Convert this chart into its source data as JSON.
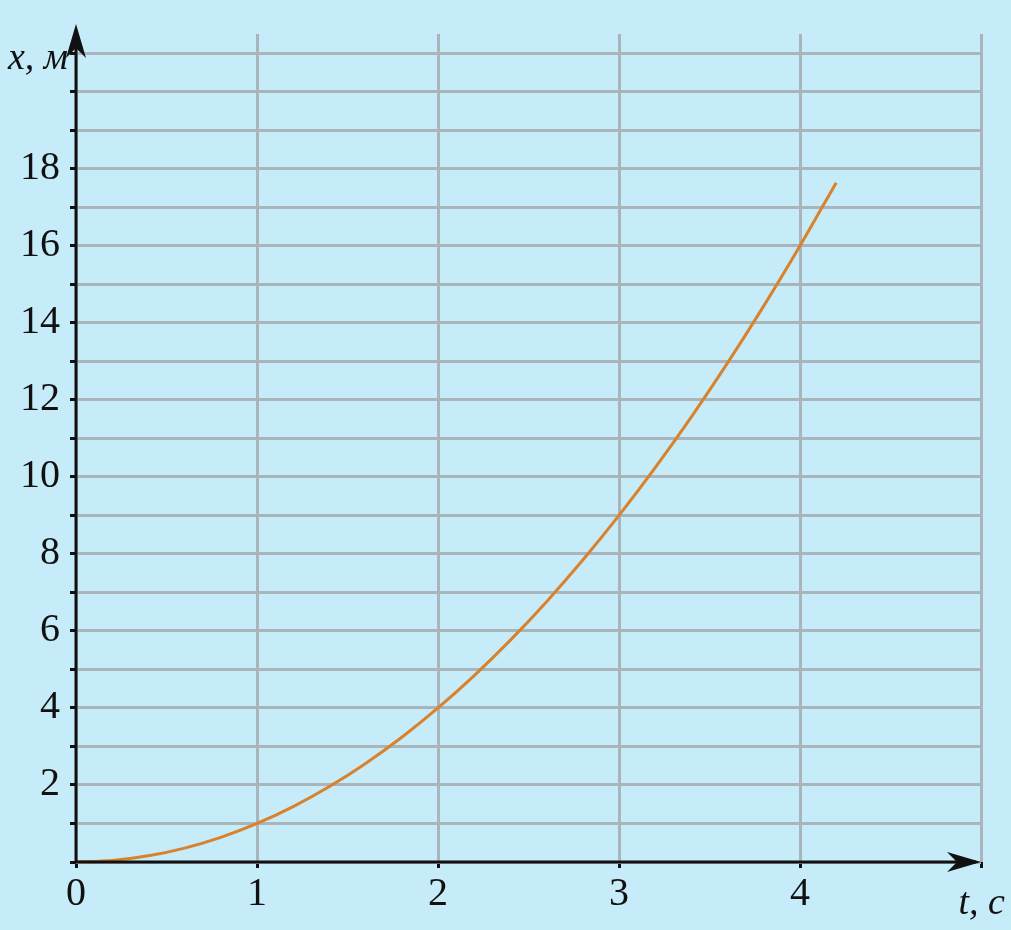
{
  "chart_data": {
    "type": "line",
    "xlabel": "t, с",
    "ylabel": "x, м",
    "x": [
      0,
      0.2,
      0.4,
      0.6,
      0.8,
      1,
      1.2,
      1.4,
      1.6,
      1.8,
      2,
      2.2,
      2.4,
      2.6,
      2.8,
      3,
      3.2,
      3.4,
      3.6,
      3.8,
      4,
      4.2
    ],
    "series": [
      {
        "color": "#d9822b",
        "values": [
          0,
          0.04,
          0.16,
          0.36,
          0.64,
          1,
          1.44,
          1.96,
          2.56,
          3.24,
          4,
          4.84,
          5.76,
          6.76,
          7.84,
          9,
          10.24,
          11.56,
          12.96,
          14.44,
          16,
          17.64
        ]
      }
    ],
    "xlim": [
      0,
      5
    ],
    "xticks": [
      0,
      1,
      2,
      3,
      4,
      {
        "value": 5,
        "label": null
      }
    ],
    "ylim": [
      0,
      21.5
    ],
    "yticks": [
      {
        "value": 0,
        "label": null
      },
      {
        "value": 1,
        "label": null
      },
      2,
      {
        "value": 3,
        "label": null
      },
      4,
      {
        "value": 5,
        "label": null
      },
      6,
      {
        "value": 7,
        "label": null
      },
      8,
      {
        "value": 9,
        "label": null
      },
      10,
      {
        "value": 11,
        "label": null
      },
      12,
      {
        "value": 13,
        "label": null
      },
      14,
      {
        "value": 15,
        "label": null
      },
      16,
      {
        "value": 17,
        "label": null
      },
      18,
      {
        "value": 19,
        "label": null
      },
      {
        "value": 20,
        "label": null
      },
      {
        "value": 21,
        "label": null
      }
    ],
    "grid": true,
    "marker": "none",
    "line_style": "solid",
    "legend": false
  }
}
